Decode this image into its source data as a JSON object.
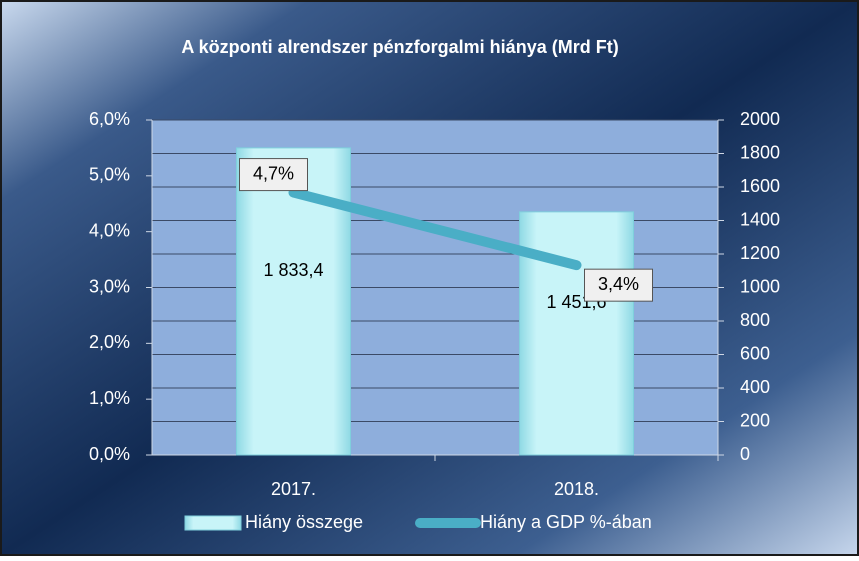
{
  "chart_data": {
    "type": "bar",
    "title": "A központi alrendszer pénzforgalmi hiánya (Mrd Ft)",
    "categories": [
      "2017.",
      "2018."
    ],
    "series": [
      {
        "name": "Hiány összege",
        "type": "bar",
        "axis": "y2",
        "color": "#b8eef4",
        "values": [
          1833.4,
          1451.6
        ],
        "value_labels": [
          "1 833,4",
          "1 451,6"
        ]
      },
      {
        "name": "Hiány a GDP %-ában",
        "type": "line",
        "axis": "y",
        "color": "#4aaec6",
        "values": [
          4.7,
          3.4
        ],
        "value_labels": [
          "4,7%",
          "3,4%"
        ]
      }
    ],
    "ylim": [
      0,
      6
    ],
    "yticks": [
      {
        "value": 0,
        "label": "0,0%"
      },
      {
        "value": 1,
        "label": "1,0%"
      },
      {
        "value": 2,
        "label": "2,0%"
      },
      {
        "value": 3,
        "label": "3,0%"
      },
      {
        "value": 4,
        "label": "4,0%"
      },
      {
        "value": 5,
        "label": "5,0%"
      },
      {
        "value": 6,
        "label": "6,0%"
      }
    ],
    "y2lim": [
      0,
      2000
    ],
    "y2ticks": [
      0,
      200,
      400,
      600,
      800,
      1000,
      1200,
      1400,
      1600,
      1800,
      2000
    ],
    "grid": true,
    "legend": "bottom"
  }
}
